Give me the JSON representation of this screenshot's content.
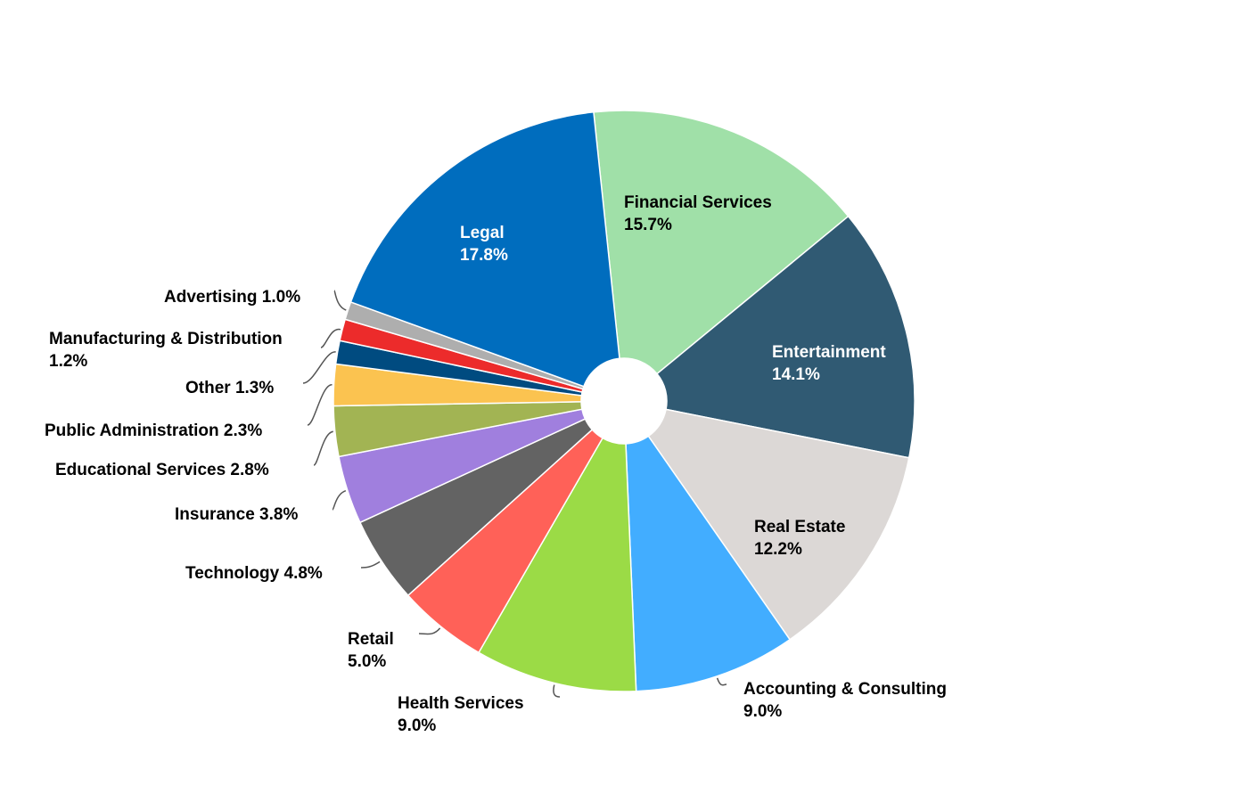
{
  "chart_data": {
    "type": "pie",
    "donut": true,
    "title": "",
    "start_angle_deg": -6,
    "direction": "clockwise",
    "slices": [
      {
        "label": "Financial Services",
        "value": 15.7,
        "text": "15.7%",
        "color": "#a0e0a8",
        "label_color": "#000000"
      },
      {
        "label": "Entertainment",
        "value": 14.1,
        "text": "14.1%",
        "color": "#305a73",
        "label_color": "#ffffff"
      },
      {
        "label": "Real Estate",
        "value": 12.2,
        "text": "12.2%",
        "color": "#dcd8d6",
        "label_color": "#000000"
      },
      {
        "label": "Accounting & Consulting",
        "value": 9.0,
        "text": "9.0%",
        "color": "#42adff",
        "label_color": "#000000"
      },
      {
        "label": "Health Services",
        "value": 9.0,
        "text": "9.0%",
        "color": "#9bdb46",
        "label_color": "#000000"
      },
      {
        "label": "Retail",
        "value": 5.0,
        "text": "5.0%",
        "color": "#ff6158",
        "label_color": "#000000"
      },
      {
        "label": "Technology",
        "value": 4.8,
        "text": "4.8%",
        "color": "#636363",
        "label_color": "#000000"
      },
      {
        "label": "Insurance",
        "value": 3.8,
        "text": "3.8%",
        "color": "#a07fde",
        "label_color": "#000000"
      },
      {
        "label": "Educational Services",
        "value": 2.8,
        "text": "2.8%",
        "color": "#a2b453",
        "label_color": "#000000"
      },
      {
        "label": "Public Administration",
        "value": 2.3,
        "text": "2.3%",
        "color": "#fbc350",
        "label_color": "#000000"
      },
      {
        "label": "Other",
        "value": 1.3,
        "text": "1.3%",
        "color": "#004b80",
        "label_color": "#000000"
      },
      {
        "label": "Manufacturing & Distribution",
        "value": 1.2,
        "text": "1.2%",
        "color": "#ec2b2b",
        "label_color": "#000000"
      },
      {
        "label": "Advertising",
        "value": 1.0,
        "text": "1.0%",
        "color": "#aeaeae",
        "label_color": "#000000"
      },
      {
        "label": "Legal",
        "value": 17.8,
        "text": "17.8%",
        "color": "#006dbe",
        "label_color": "#ffffff"
      }
    ]
  }
}
